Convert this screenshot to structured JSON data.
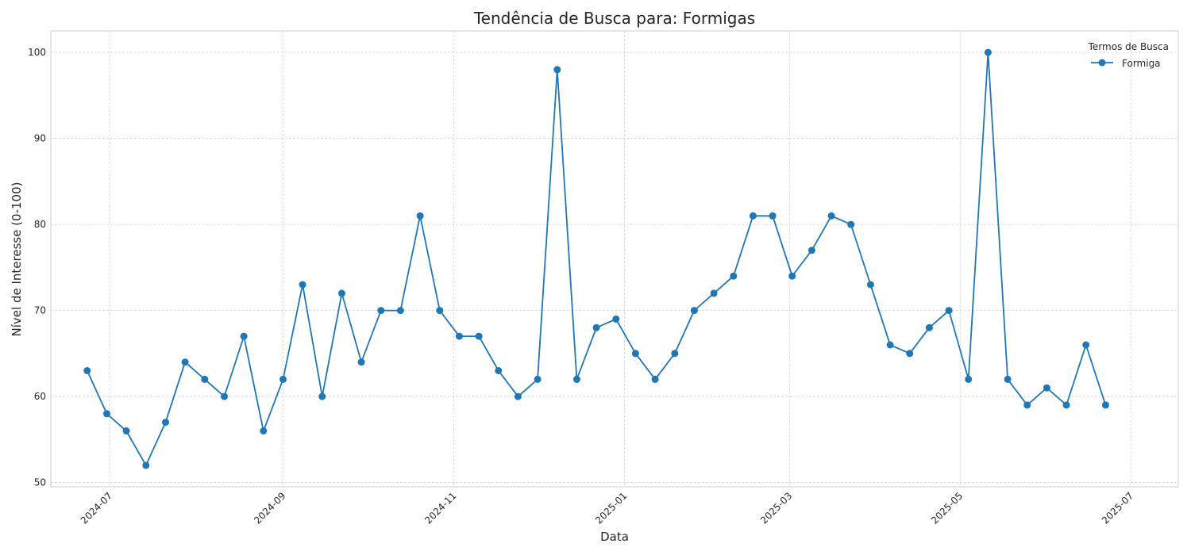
{
  "chart_data": {
    "type": "line",
    "title": "Tendência de Busca para: Formigas",
    "xlabel": "Data",
    "ylabel": "Nível de Interesse (0-100)",
    "ylim": [
      49.5,
      102.5
    ],
    "xlim": [
      "2024-06-10",
      "2025-07-18"
    ],
    "grid": true,
    "legend": {
      "title": "Termos de Busca",
      "position": "top-right"
    },
    "x_ticks": [
      "2024-07",
      "2024-09",
      "2024-11",
      "2025-01",
      "2025-03",
      "2025-05",
      "2025-07"
    ],
    "y_ticks": [
      "50",
      "60",
      "70",
      "80",
      "90",
      "100"
    ],
    "x": [
      "2024-06-23",
      "2024-06-30",
      "2024-07-07",
      "2024-07-14",
      "2024-07-21",
      "2024-07-28",
      "2024-08-04",
      "2024-08-11",
      "2024-08-18",
      "2024-08-25",
      "2024-09-01",
      "2024-09-08",
      "2024-09-15",
      "2024-09-22",
      "2024-09-29",
      "2024-10-06",
      "2024-10-13",
      "2024-10-20",
      "2024-10-27",
      "2024-11-03",
      "2024-11-10",
      "2024-11-17",
      "2024-11-24",
      "2024-12-01",
      "2024-12-08",
      "2024-12-15",
      "2024-12-22",
      "2024-12-29",
      "2025-01-05",
      "2025-01-12",
      "2025-01-19",
      "2025-01-26",
      "2025-02-02",
      "2025-02-09",
      "2025-02-16",
      "2025-02-23",
      "2025-03-02",
      "2025-03-09",
      "2025-03-16",
      "2025-03-23",
      "2025-03-30",
      "2025-04-06",
      "2025-04-13",
      "2025-04-20",
      "2025-04-27",
      "2025-05-04",
      "2025-05-11",
      "2025-05-18",
      "2025-05-25",
      "2025-06-01",
      "2025-06-08",
      "2025-06-15",
      "2025-06-22"
    ],
    "series": [
      {
        "name": "Formiga",
        "color": "#1f77b4",
        "values": [
          63,
          58,
          56,
          52,
          57,
          64,
          62,
          60,
          67,
          56,
          62,
          73,
          60,
          72,
          64,
          70,
          70,
          81,
          70,
          67,
          67,
          63,
          60,
          62,
          98,
          62,
          68,
          69,
          65,
          62,
          65,
          70,
          72,
          74,
          81,
          81,
          74,
          77,
          81,
          80,
          73,
          66,
          65,
          68,
          70,
          62,
          100,
          62,
          59,
          61,
          59,
          66,
          59
        ]
      }
    ]
  }
}
